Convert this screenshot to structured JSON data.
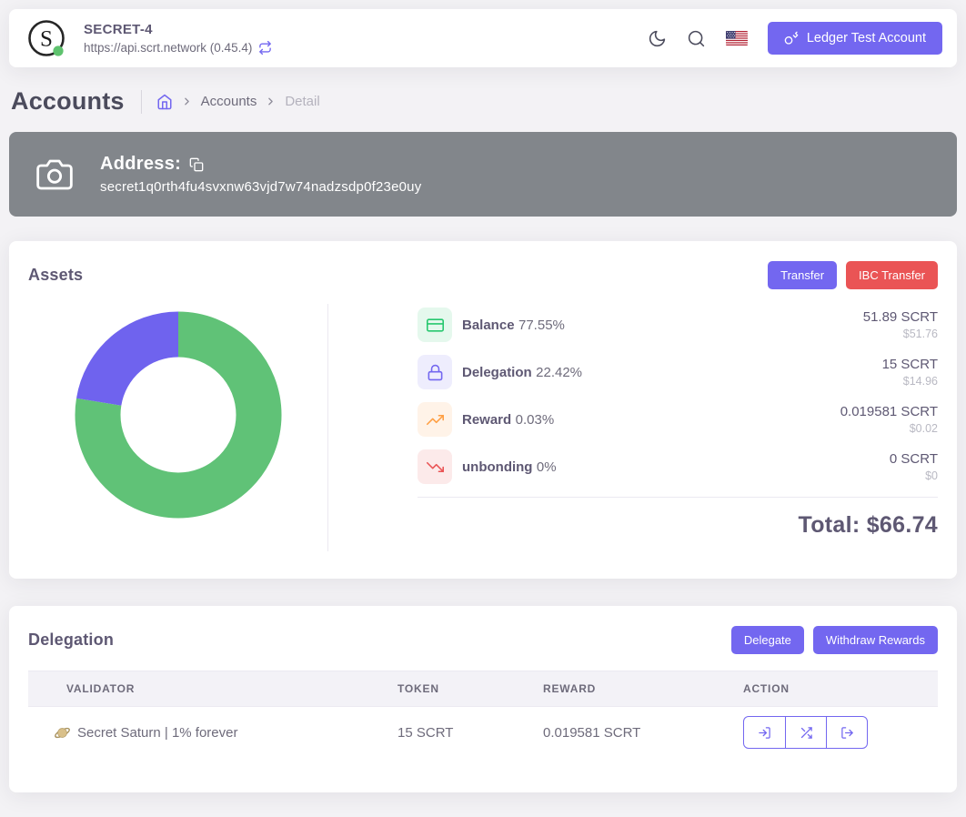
{
  "header": {
    "chain_name": "SECRET-4",
    "endpoint": "https://api.scrt.network (0.45.4)",
    "wallet_button": "Ledger Test Account"
  },
  "breadcrumb": {
    "page_title": "Accounts",
    "items": [
      "Accounts",
      "Detail"
    ]
  },
  "address_banner": {
    "label": "Address:",
    "address": "secret1q0rth4fu4svxnw63vjd7w74nadzsdp0f23e0uy"
  },
  "assets": {
    "title": "Assets",
    "transfer_label": "Transfer",
    "ibc_transfer_label": "IBC Transfer",
    "rows": [
      {
        "label": "Balance",
        "percent": "77.55%",
        "amount": "51.89 SCRT",
        "usd": "$51.76"
      },
      {
        "label": "Delegation",
        "percent": "22.42%",
        "amount": "15 SCRT",
        "usd": "$14.96"
      },
      {
        "label": "Reward",
        "percent": "0.03%",
        "amount": "0.019581 SCRT",
        "usd": "$0.02"
      },
      {
        "label": "unbonding",
        "percent": "0%",
        "amount": "0 SCRT",
        "usd": "$0"
      }
    ],
    "total": "Total: $66.74"
  },
  "chart_data": {
    "type": "pie",
    "subtype": "donut",
    "categories": [
      "Balance",
      "Delegation",
      "Reward",
      "unbonding"
    ],
    "values": [
      77.55,
      22.42,
      0.03,
      0
    ],
    "colors": [
      "#60c277",
      "#6f63ee",
      "#ff9f43",
      "#ea5455"
    ],
    "legend_position": "right",
    "start_angle_deg": -90,
    "direction": "clockwise"
  },
  "delegation": {
    "title": "Delegation",
    "delegate_label": "Delegate",
    "withdraw_label": "Withdraw Rewards",
    "table": {
      "headers": [
        "VALIDATOR",
        "TOKEN",
        "REWARD",
        "ACTION"
      ],
      "rows": [
        {
          "validator": "Secret Saturn | 1% forever",
          "token": "15 SCRT",
          "reward": "0.019581 SCRT"
        }
      ]
    }
  },
  "theme": {
    "primary": "#7367f0",
    "danger": "#ea5455",
    "success": "#28c76f",
    "warning": "#ff9f43",
    "banner_bg": "#82868b",
    "heading": "#5e5873"
  }
}
